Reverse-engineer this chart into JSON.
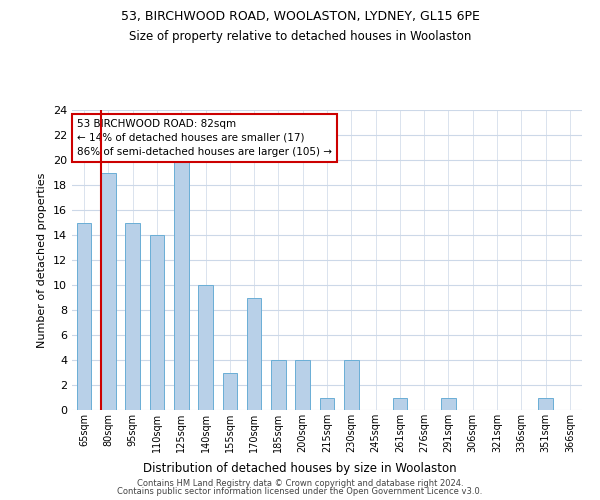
{
  "title1": "53, BIRCHWOOD ROAD, WOOLASTON, LYDNEY, GL15 6PE",
  "title2": "Size of property relative to detached houses in Woolaston",
  "xlabel": "Distribution of detached houses by size in Woolaston",
  "ylabel": "Number of detached properties",
  "categories": [
    "65sqm",
    "80sqm",
    "95sqm",
    "110sqm",
    "125sqm",
    "140sqm",
    "155sqm",
    "170sqm",
    "185sqm",
    "200sqm",
    "215sqm",
    "230sqm",
    "245sqm",
    "261sqm",
    "276sqm",
    "291sqm",
    "306sqm",
    "321sqm",
    "336sqm",
    "351sqm",
    "366sqm"
  ],
  "values": [
    15,
    19,
    15,
    14,
    20,
    10,
    3,
    9,
    4,
    4,
    1,
    4,
    0,
    1,
    0,
    1,
    0,
    0,
    0,
    1,
    0
  ],
  "bar_color": "#b8d0e8",
  "bar_edge_color": "#6aaed6",
  "vline_color": "#cc0000",
  "vline_x_index": 1,
  "ylim": [
    0,
    24
  ],
  "yticks": [
    0,
    2,
    4,
    6,
    8,
    10,
    12,
    14,
    16,
    18,
    20,
    22,
    24
  ],
  "annotation_text": "53 BIRCHWOOD ROAD: 82sqm\n← 14% of detached houses are smaller (17)\n86% of semi-detached houses are larger (105) →",
  "annotation_box_color": "#ffffff",
  "annotation_edge_color": "#cc0000",
  "footer1": "Contains HM Land Registry data © Crown copyright and database right 2024.",
  "footer2": "Contains public sector information licensed under the Open Government Licence v3.0.",
  "bg_color": "#ffffff",
  "grid_color": "#ccd8e8",
  "bar_width": 0.6
}
